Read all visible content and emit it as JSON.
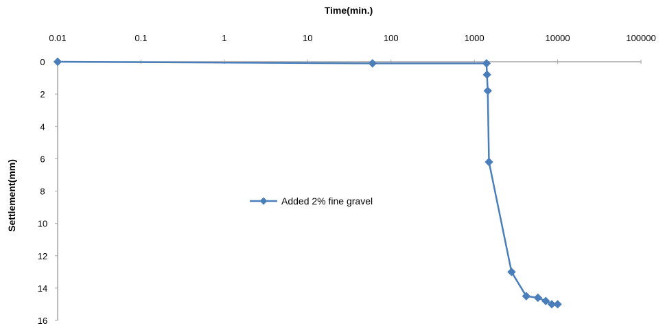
{
  "chart_data": {
    "type": "scatter",
    "xlabel": "Time(min.)",
    "ylabel": "Settlement(mm)",
    "x_scale": "log",
    "x_axis_position": "top",
    "y_inverted": true,
    "xlim": [
      0.01,
      100000
    ],
    "ylim": [
      0,
      16
    ],
    "x_ticks": [
      "0.01",
      "0.1",
      "1",
      "10",
      "100",
      "1000",
      "10000",
      "100000"
    ],
    "y_ticks": [
      "0",
      "2",
      "4",
      "6",
      "8",
      "10",
      "12",
      "14",
      "16"
    ],
    "grid": false,
    "legend_position": "center-left",
    "series": [
      {
        "name": "Added 2% fine gravel",
        "color": "#4a7ebb",
        "marker": "diamond",
        "line": true,
        "x": [
          0.01,
          60,
          1400,
          1420,
          1450,
          1500,
          2800,
          4200,
          5800,
          7200,
          8500,
          10000
        ],
        "y": [
          0,
          0.1,
          0.1,
          0.8,
          1.8,
          6.2,
          13.0,
          14.5,
          14.6,
          14.8,
          15.0,
          15.0
        ]
      }
    ]
  }
}
